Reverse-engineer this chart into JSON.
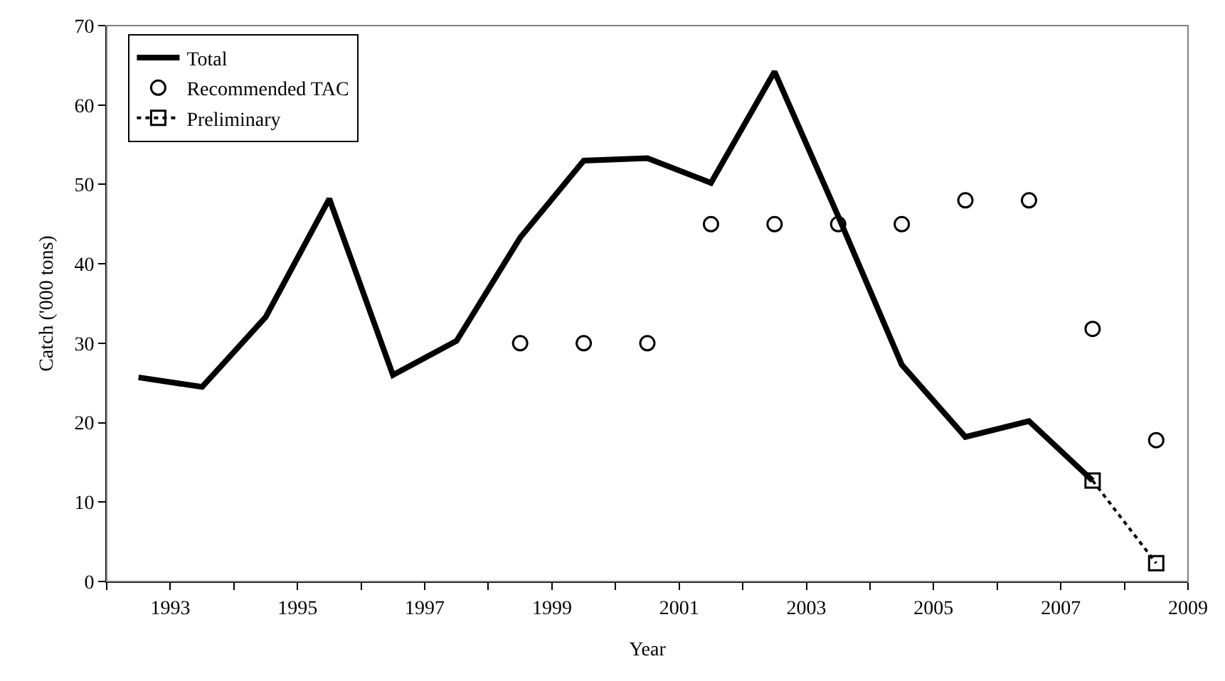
{
  "chart_data": {
    "type": "line",
    "xlabel": "Year",
    "ylabel": "Catch ('000 tons)",
    "xlim": [
      1992,
      2009
    ],
    "xticks": [
      {
        "value": 1992,
        "label": null
      },
      1993,
      {
        "value": 1994,
        "label": null
      },
      1995,
      {
        "value": 1996,
        "label": null
      },
      1997,
      {
        "value": 1998,
        "label": null
      },
      1999,
      {
        "value": 2000,
        "label": null
      },
      2001,
      {
        "value": 2002,
        "label": null
      },
      2003,
      {
        "value": 2004,
        "label": null
      },
      2005,
      {
        "value": 2006,
        "label": null
      },
      2007,
      {
        "value": 2008,
        "label": null
      },
      2009
    ],
    "ylim": [
      0,
      70
    ],
    "yticks": [
      0,
      10,
      20,
      30,
      40,
      50,
      60,
      70
    ],
    "grid": false,
    "legend": "top left",
    "series": [
      {
        "name": "Total",
        "color": "#000000",
        "marker": "none",
        "line_style": "solid",
        "x": [
          1992.5,
          1993.5,
          1994.5,
          1995.5,
          1996.5,
          1997.5,
          1998.5,
          1999.5,
          2000.5,
          2001.5,
          2002.5,
          2003.5,
          2004.5,
          2005.5,
          2006.5,
          2007.5
        ],
        "values": [
          25.7,
          24.5,
          33.3,
          48.2,
          26,
          30.3,
          43.3,
          53,
          53.3,
          50.2,
          64.2,
          46,
          27.3,
          18.2,
          20.2,
          12.7
        ]
      },
      {
        "name": "Recommended TAC",
        "type": "scatter",
        "color": "#000000",
        "marker": "circle",
        "x": [
          1998.5,
          1999.5,
          2000.5,
          2001.5,
          2002.5,
          2003.5,
          2004.5,
          2005.5,
          2006.5,
          2007.5,
          2008.5
        ],
        "values": [
          30,
          30,
          30,
          45,
          45,
          45,
          45,
          48,
          48,
          31.8,
          17.8
        ]
      },
      {
        "name": "Preliminary",
        "type": "line",
        "color": "#000000",
        "marker": "square",
        "line_style": "dotted",
        "x": [
          2007.5,
          2008.5
        ],
        "values": [
          12.7,
          2.3
        ]
      }
    ]
  }
}
